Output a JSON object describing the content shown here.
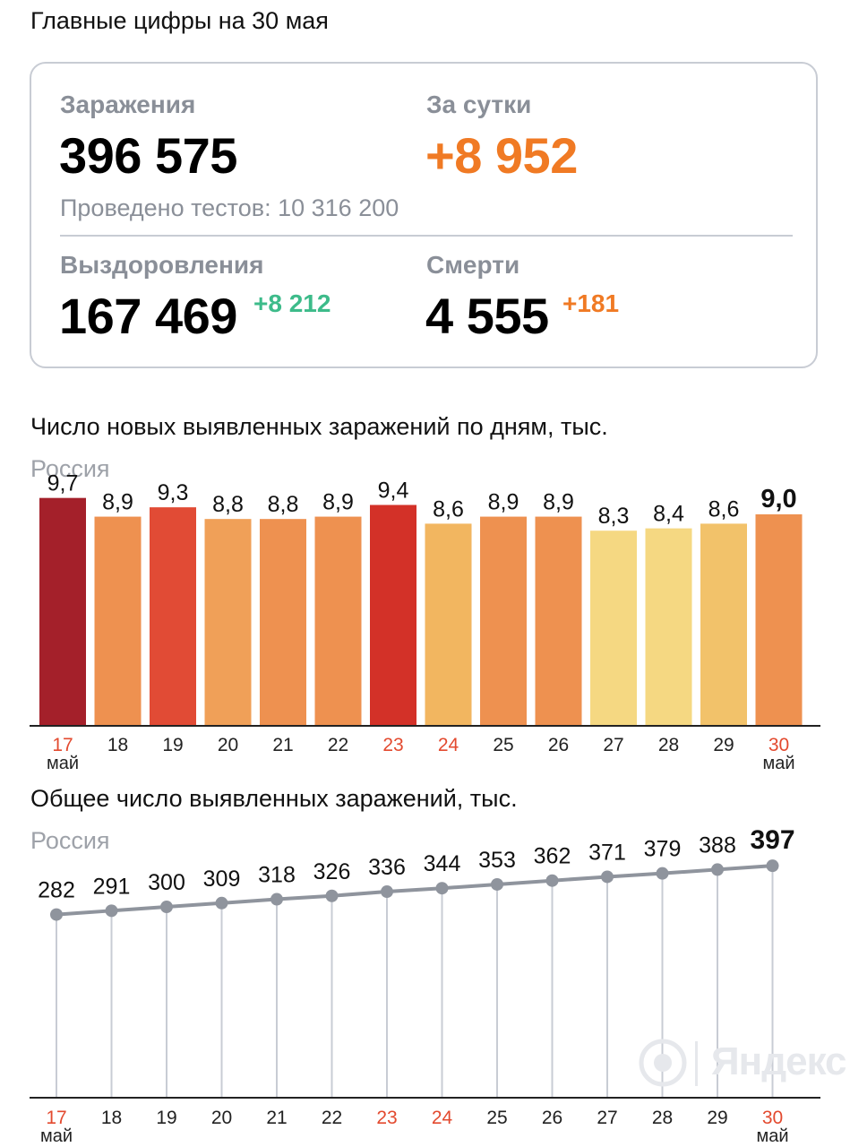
{
  "header": {
    "title": "Главные цифры на 30 мая"
  },
  "summary": {
    "infections": {
      "label": "Заражения",
      "value": "396 575"
    },
    "daily": {
      "label": "За сутки",
      "value": "+8 952"
    },
    "tests": "Проведено тестов: 10 316 200",
    "recoveries": {
      "label": "Выздоровления",
      "value": "167 469",
      "delta": "+8 212"
    },
    "deaths": {
      "label": "Смерти",
      "value": "4 555",
      "delta": "+181"
    }
  },
  "colors": {
    "orange_accent": "#f07a24",
    "green_accent": "#3dbb8a",
    "weekend_red": "#e34a2f"
  },
  "watermark": {
    "text": "Яндекс"
  },
  "chart_data": [
    {
      "type": "bar",
      "title": "Число новых выявленных заражений по дням, тыс.",
      "subtitle": "Россия",
      "categories": [
        "17",
        "18",
        "19",
        "20",
        "21",
        "22",
        "23",
        "24",
        "25",
        "26",
        "27",
        "28",
        "29",
        "30"
      ],
      "month_label": "май",
      "values": [
        9.7,
        8.9,
        9.3,
        8.8,
        8.8,
        8.9,
        9.4,
        8.6,
        8.9,
        8.9,
        8.3,
        8.4,
        8.6,
        9.0
      ],
      "value_labels": [
        "9,7",
        "8,9",
        "9,3",
        "8,8",
        "8,8",
        "8,9",
        "9,4",
        "8,6",
        "8,9",
        "8,9",
        "8,3",
        "8,4",
        "8,6",
        "9,0"
      ],
      "bar_colors": [
        "#a4202a",
        "#ee9150",
        "#e14b35",
        "#f0a058",
        "#ee9150",
        "#ee9150",
        "#d33128",
        "#f2b660",
        "#ee9150",
        "#ee9150",
        "#f5d882",
        "#f5d882",
        "#f2c26a",
        "#ee9150"
      ],
      "red_categories": [
        "17",
        "23",
        "24",
        "30"
      ],
      "ylim": [
        0,
        10.3
      ],
      "grid": false,
      "legend": "none"
    },
    {
      "type": "line",
      "title": "Общее число выявленных заражений, тыс.",
      "subtitle": "Россия",
      "categories": [
        "17",
        "18",
        "19",
        "20",
        "21",
        "22",
        "23",
        "24",
        "25",
        "26",
        "27",
        "28",
        "29",
        "30"
      ],
      "month_label": "май",
      "values": [
        282,
        291,
        300,
        309,
        318,
        326,
        336,
        344,
        353,
        362,
        371,
        379,
        388,
        397
      ],
      "red_categories": [
        "17",
        "23",
        "24",
        "30"
      ],
      "ylim": [
        -150,
        410
      ],
      "grid": false,
      "legend": "none"
    }
  ]
}
